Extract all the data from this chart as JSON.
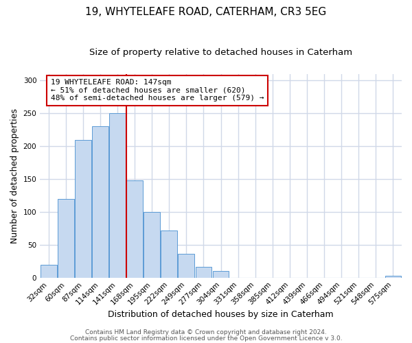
{
  "title": "19, WHYTELEAFE ROAD, CATERHAM, CR3 5EG",
  "subtitle": "Size of property relative to detached houses in Caterham",
  "xlabel": "Distribution of detached houses by size in Caterham",
  "ylabel": "Number of detached properties",
  "bar_labels": [
    "32sqm",
    "60sqm",
    "87sqm",
    "114sqm",
    "141sqm",
    "168sqm",
    "195sqm",
    "222sqm",
    "249sqm",
    "277sqm",
    "304sqm",
    "331sqm",
    "358sqm",
    "385sqm",
    "412sqm",
    "439sqm",
    "466sqm",
    "494sqm",
    "521sqm",
    "548sqm",
    "575sqm"
  ],
  "bar_values": [
    20,
    120,
    210,
    230,
    250,
    148,
    100,
    72,
    36,
    16,
    10,
    0,
    0,
    0,
    0,
    0,
    0,
    0,
    0,
    0,
    3
  ],
  "bar_color": "#c6d9f0",
  "bar_edge_color": "#5b9bd5",
  "vline_x": 4.5,
  "vline_color": "#cc0000",
  "annotation_box_text": "19 WHYTELEAFE ROAD: 147sqm\n← 51% of detached houses are smaller (620)\n48% of semi-detached houses are larger (579) →",
  "ylim": [
    0,
    310
  ],
  "yticks": [
    0,
    50,
    100,
    150,
    200,
    250,
    300
  ],
  "footer_line1": "Contains HM Land Registry data © Crown copyright and database right 2024.",
  "footer_line2": "Contains public sector information licensed under the Open Government Licence v 3.0.",
  "bg_color": "#ffffff",
  "plot_bg_color": "#ffffff",
  "grid_color": "#d0d8e8",
  "title_fontsize": 11,
  "subtitle_fontsize": 9.5,
  "axis_label_fontsize": 9,
  "tick_fontsize": 7.5,
  "footer_fontsize": 6.5
}
